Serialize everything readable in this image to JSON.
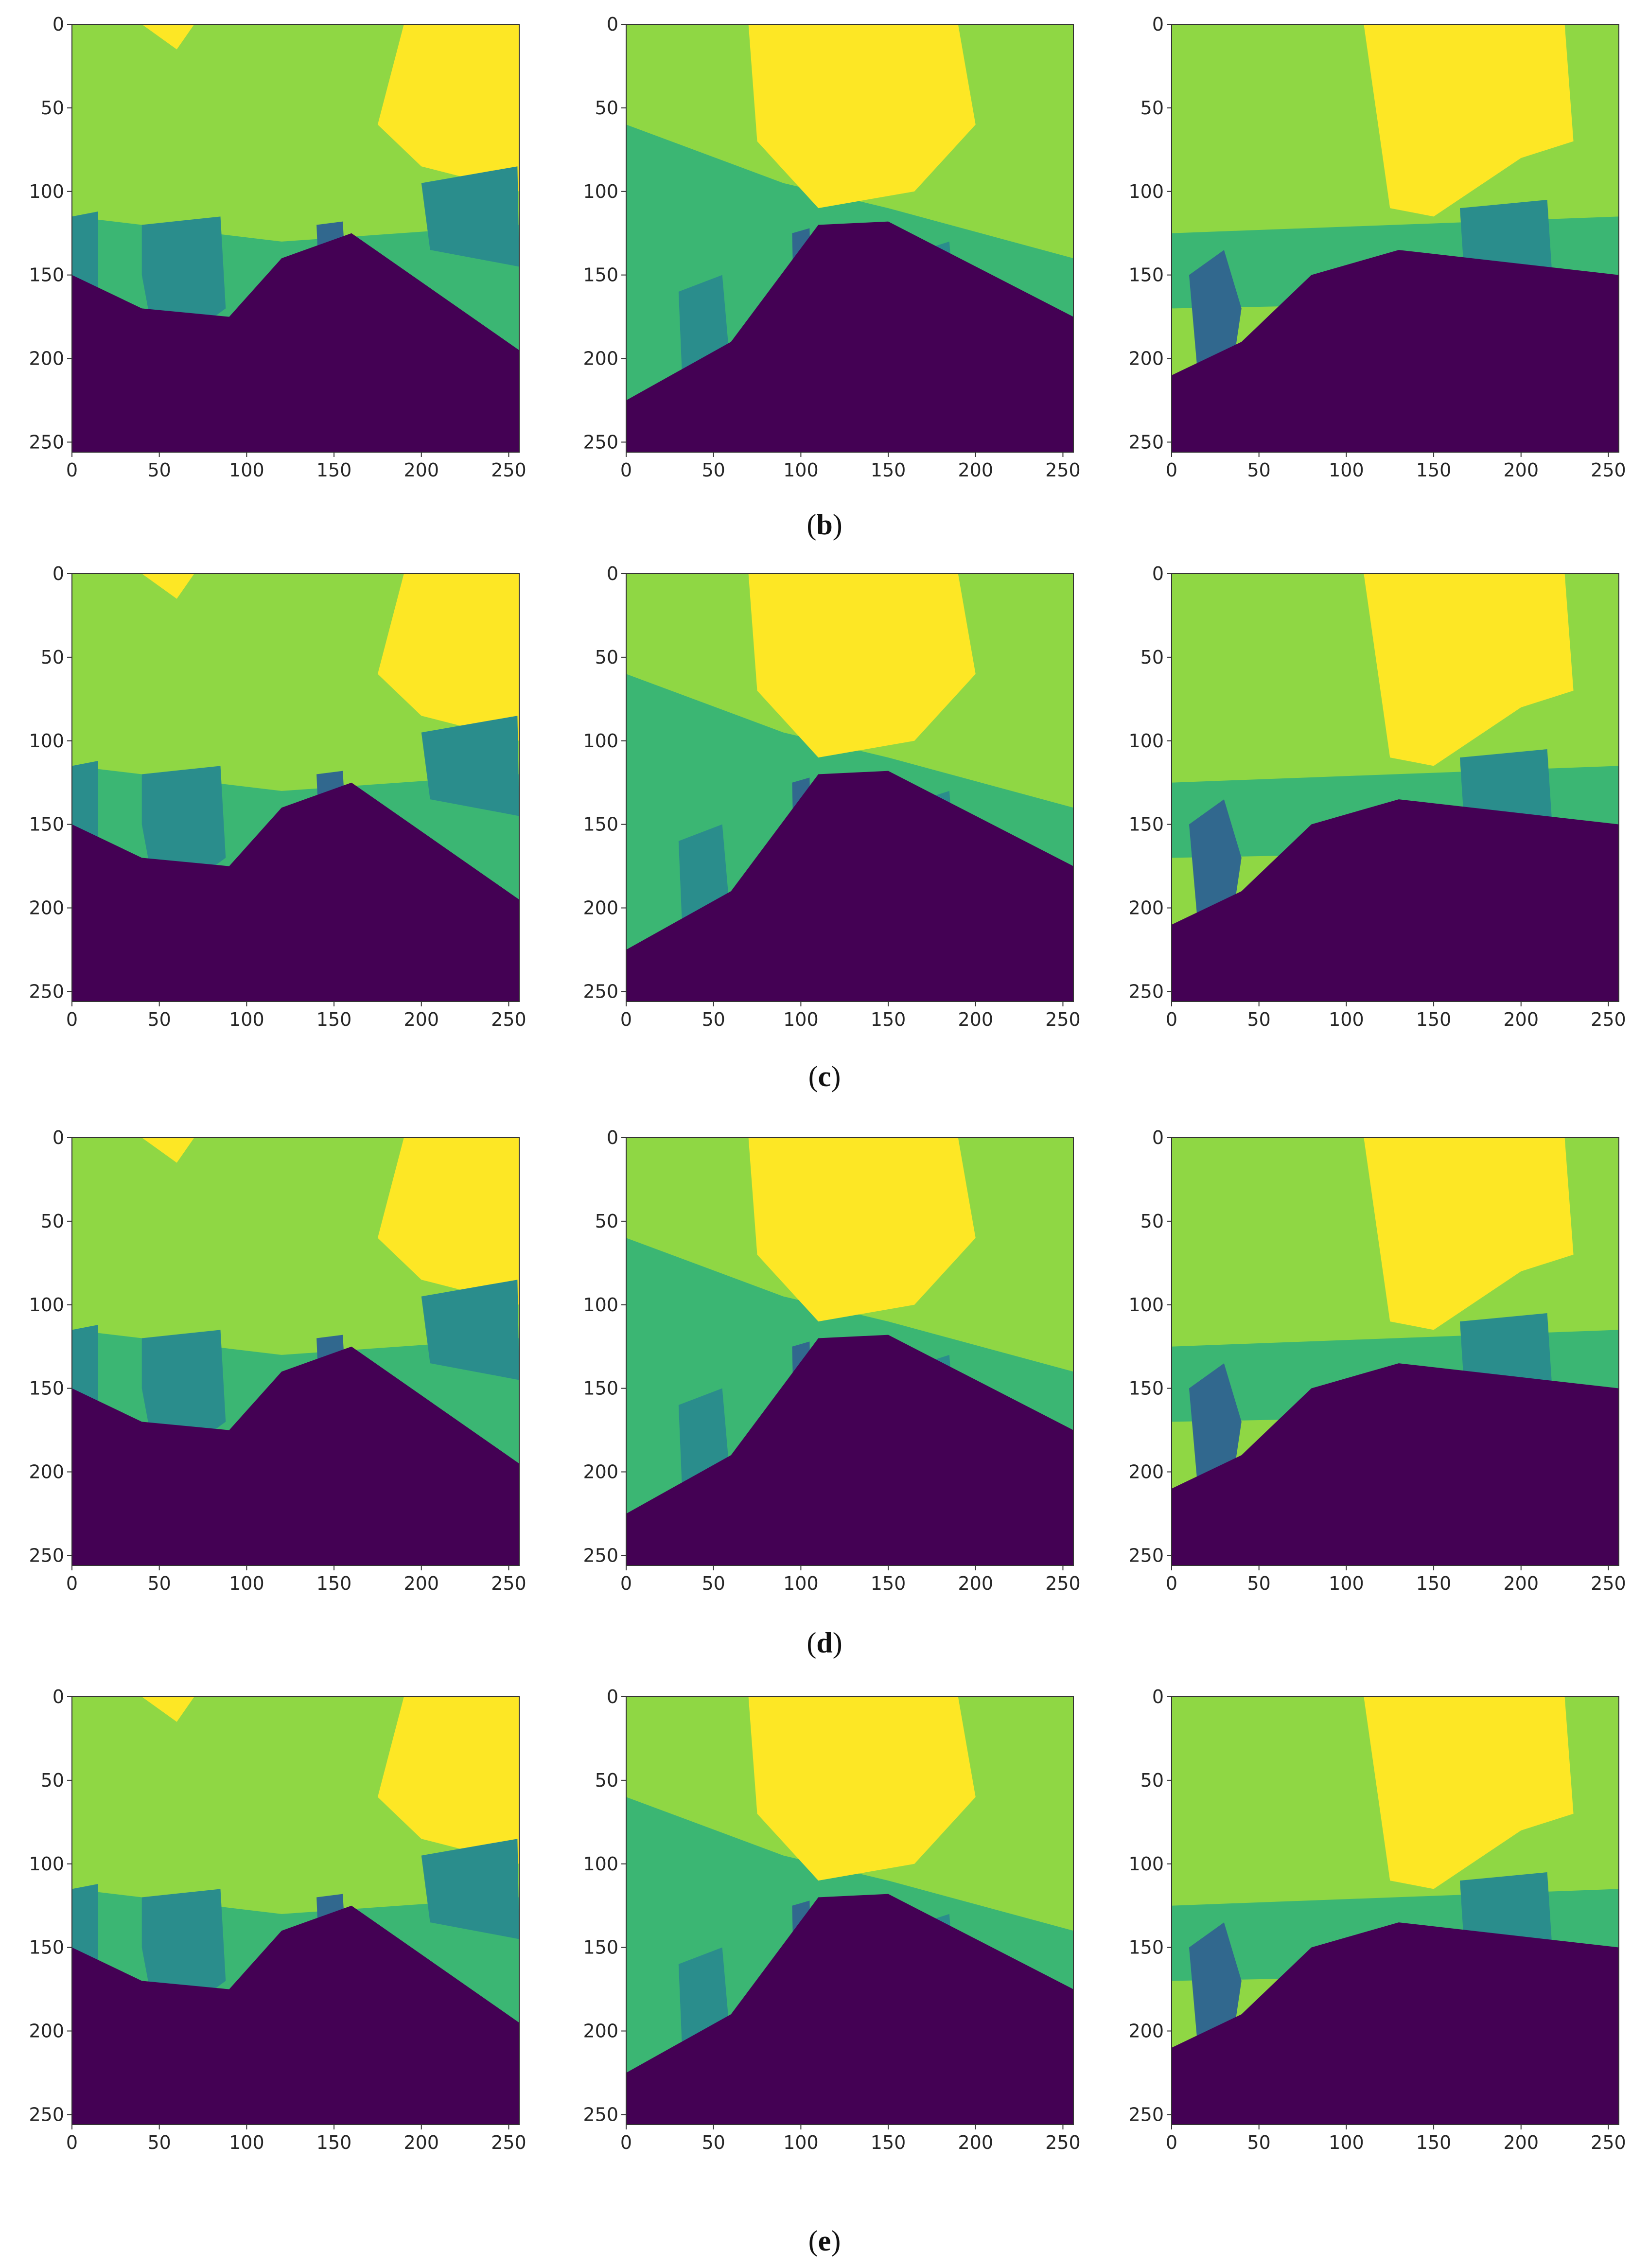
{
  "figure": {
    "captions": [
      {
        "open": "(",
        "letter": "b",
        "close": ")"
      },
      {
        "open": "(",
        "letter": "c",
        "close": ")"
      },
      {
        "open": "(",
        "letter": "d",
        "close": ")"
      },
      {
        "open": "(",
        "letter": "e",
        "close": ")"
      }
    ],
    "colormap": {
      "name": "viridis",
      "class_colors": [
        "#440154",
        "#31688e",
        "#2a8d8c",
        "#3bb673",
        "#8fd744",
        "#fde725"
      ]
    }
  },
  "chart_data": {
    "type": "heatmap",
    "description_units": "pixel indices of a 256x256 segmentation mask",
    "xlim": [
      0,
      255
    ],
    "ylim": [
      255,
      0
    ],
    "x_ticks": [
      0,
      50,
      100,
      150,
      200,
      250
    ],
    "y_ticks": [
      0,
      50,
      100,
      150,
      200,
      250
    ],
    "grid": false,
    "legend": "none",
    "panels_per_row": 3,
    "rows": [
      "b",
      "c",
      "d",
      "e"
    ]
  }
}
